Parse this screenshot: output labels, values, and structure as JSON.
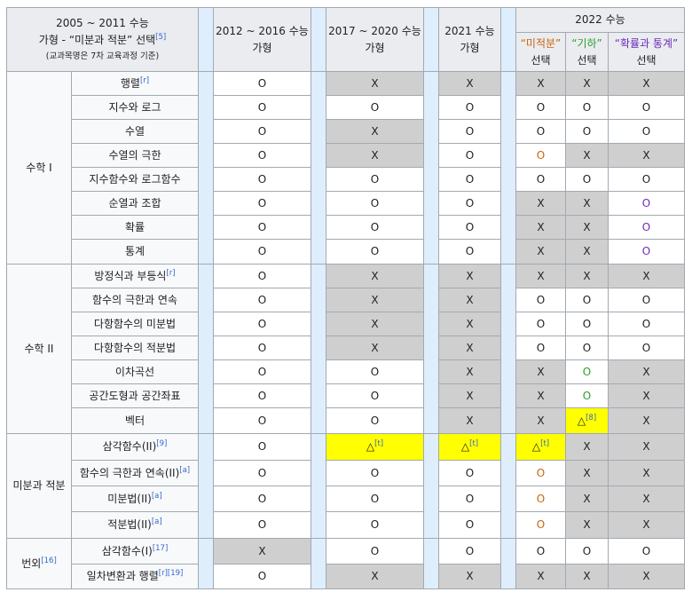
{
  "header": {
    "col1_line1": "2005 ~ 2011 수능",
    "col1_line2": "가형 - “미분과 적분” 선택",
    "col1_line2_ref": "[5]",
    "col1_line3": "(교과목명은 7차 교육과정 기준)",
    "col2_line1": "2012 ~ 2016 수능",
    "col2_line2": "가형",
    "col3_line1": "2017 ~ 2020 수능",
    "col3_line2": "가형",
    "col4_line1": "2021 수능",
    "col4_line2": "가형",
    "col5": "2022 수능",
    "sub1_line1": "“미적분”",
    "sub1_line2": "선택",
    "sub2_line1": "“기하”",
    "sub2_line2": "선택",
    "sub3_line1": "“확률과 통계”",
    "sub3_line2": "선택"
  },
  "colors": {
    "gray_cell": "#cfcfcf",
    "yellow_cell": "#ffff00",
    "gap_column": "#dfeefc",
    "header_bg": "#eaecf0",
    "orange_mark": "#c8640a",
    "green_mark": "#2e9d2e",
    "purple_mark": "#6c2cb8"
  },
  "groups": [
    {
      "name": "수학 I",
      "ref": ""
    },
    {
      "name": "수학 II",
      "ref": ""
    },
    {
      "name": "미분과 적분",
      "ref": ""
    },
    {
      "name": "번외",
      "ref": "[16]"
    }
  ],
  "rows": [
    {
      "topic": "행렬",
      "ref": "[r]",
      "cells": [
        [
          "O",
          "w",
          ""
        ],
        [
          "X",
          "g",
          ""
        ],
        [
          "X",
          "g",
          ""
        ],
        [
          "X",
          "g",
          ""
        ],
        [
          "X",
          "g",
          ""
        ],
        [
          "X",
          "g",
          ""
        ]
      ]
    },
    {
      "topic": "지수와 로그",
      "ref": "",
      "cells": [
        [
          "O",
          "w",
          ""
        ],
        [
          "O",
          "w",
          ""
        ],
        [
          "O",
          "w",
          ""
        ],
        [
          "O",
          "w",
          ""
        ],
        [
          "O",
          "w",
          ""
        ],
        [
          "O",
          "w",
          ""
        ]
      ]
    },
    {
      "topic": "수열",
      "ref": "",
      "cells": [
        [
          "O",
          "w",
          ""
        ],
        [
          "X",
          "g",
          ""
        ],
        [
          "O",
          "w",
          ""
        ],
        [
          "O",
          "w",
          ""
        ],
        [
          "O",
          "w",
          ""
        ],
        [
          "O",
          "w",
          ""
        ]
      ]
    },
    {
      "topic": "수열의 극한",
      "ref": "",
      "cells": [
        [
          "O",
          "w",
          ""
        ],
        [
          "X",
          "g",
          ""
        ],
        [
          "O",
          "w",
          ""
        ],
        [
          "O",
          "w",
          "orange"
        ],
        [
          "X",
          "g",
          ""
        ],
        [
          "X",
          "g",
          ""
        ]
      ]
    },
    {
      "topic": "지수함수와 로그함수",
      "ref": "",
      "cells": [
        [
          "O",
          "w",
          ""
        ],
        [
          "O",
          "w",
          ""
        ],
        [
          "O",
          "w",
          ""
        ],
        [
          "O",
          "w",
          ""
        ],
        [
          "O",
          "w",
          ""
        ],
        [
          "O",
          "w",
          ""
        ]
      ]
    },
    {
      "topic": "순열과 조합",
      "ref": "",
      "cells": [
        [
          "O",
          "w",
          ""
        ],
        [
          "O",
          "w",
          ""
        ],
        [
          "O",
          "w",
          ""
        ],
        [
          "X",
          "g",
          ""
        ],
        [
          "X",
          "g",
          ""
        ],
        [
          "O",
          "w",
          "purple"
        ]
      ]
    },
    {
      "topic": "확률",
      "ref": "",
      "cells": [
        [
          "O",
          "w",
          ""
        ],
        [
          "O",
          "w",
          ""
        ],
        [
          "O",
          "w",
          ""
        ],
        [
          "X",
          "g",
          ""
        ],
        [
          "X",
          "g",
          ""
        ],
        [
          "O",
          "w",
          "purple"
        ]
      ]
    },
    {
      "topic": "통계",
      "ref": "",
      "cells": [
        [
          "O",
          "w",
          ""
        ],
        [
          "O",
          "w",
          ""
        ],
        [
          "O",
          "w",
          ""
        ],
        [
          "X",
          "g",
          ""
        ],
        [
          "X",
          "g",
          ""
        ],
        [
          "O",
          "w",
          "purple"
        ]
      ]
    },
    {
      "topic": "방정식과 부등식",
      "ref": "[r]",
      "cells": [
        [
          "O",
          "w",
          ""
        ],
        [
          "X",
          "g",
          ""
        ],
        [
          "X",
          "g",
          ""
        ],
        [
          "X",
          "g",
          ""
        ],
        [
          "X",
          "g",
          ""
        ],
        [
          "X",
          "g",
          ""
        ]
      ]
    },
    {
      "topic": "함수의 극한과 연속",
      "ref": "",
      "cells": [
        [
          "O",
          "w",
          ""
        ],
        [
          "X",
          "g",
          ""
        ],
        [
          "X",
          "g",
          ""
        ],
        [
          "O",
          "w",
          ""
        ],
        [
          "O",
          "w",
          ""
        ],
        [
          "O",
          "w",
          ""
        ]
      ]
    },
    {
      "topic": "다항함수의 미분법",
      "ref": "",
      "cells": [
        [
          "O",
          "w",
          ""
        ],
        [
          "X",
          "g",
          ""
        ],
        [
          "X",
          "g",
          ""
        ],
        [
          "O",
          "w",
          ""
        ],
        [
          "O",
          "w",
          ""
        ],
        [
          "O",
          "w",
          ""
        ]
      ]
    },
    {
      "topic": "다항함수의 적분법",
      "ref": "",
      "cells": [
        [
          "O",
          "w",
          ""
        ],
        [
          "X",
          "g",
          ""
        ],
        [
          "X",
          "g",
          ""
        ],
        [
          "O",
          "w",
          ""
        ],
        [
          "O",
          "w",
          ""
        ],
        [
          "O",
          "w",
          ""
        ]
      ]
    },
    {
      "topic": "이차곡선",
      "ref": "",
      "cells": [
        [
          "O",
          "w",
          ""
        ],
        [
          "O",
          "w",
          ""
        ],
        [
          "X",
          "g",
          ""
        ],
        [
          "X",
          "g",
          ""
        ],
        [
          "O",
          "w",
          "green"
        ],
        [
          "X",
          "g",
          ""
        ]
      ]
    },
    {
      "topic": "공간도형과 공간좌표",
      "ref": "",
      "cells": [
        [
          "O",
          "w",
          ""
        ],
        [
          "O",
          "w",
          ""
        ],
        [
          "X",
          "g",
          ""
        ],
        [
          "X",
          "g",
          ""
        ],
        [
          "O",
          "w",
          "green"
        ],
        [
          "X",
          "g",
          ""
        ]
      ]
    },
    {
      "topic": "벡터",
      "ref": "",
      "cells": [
        [
          "O",
          "w",
          ""
        ],
        [
          "O",
          "w",
          ""
        ],
        [
          "X",
          "g",
          ""
        ],
        [
          "X",
          "g",
          ""
        ],
        [
          "△[8]",
          "y",
          ""
        ],
        [
          "X",
          "g",
          ""
        ]
      ]
    },
    {
      "topic": "삼각함수(II)",
      "ref": "[9]",
      "cells": [
        [
          "O",
          "w",
          ""
        ],
        [
          "△[t]",
          "y",
          ""
        ],
        [
          "△[t]",
          "y",
          ""
        ],
        [
          "△[t]",
          "y",
          ""
        ],
        [
          "X",
          "g",
          ""
        ],
        [
          "X",
          "g",
          ""
        ]
      ]
    },
    {
      "topic": "함수의 극한과 연속(II)",
      "ref": "[a]",
      "cells": [
        [
          "O",
          "w",
          ""
        ],
        [
          "O",
          "w",
          ""
        ],
        [
          "O",
          "w",
          ""
        ],
        [
          "O",
          "w",
          "orange"
        ],
        [
          "X",
          "g",
          ""
        ],
        [
          "X",
          "g",
          ""
        ]
      ]
    },
    {
      "topic": "미분법(II)",
      "ref": "[a]",
      "cells": [
        [
          "O",
          "w",
          ""
        ],
        [
          "O",
          "w",
          ""
        ],
        [
          "O",
          "w",
          ""
        ],
        [
          "O",
          "w",
          "orange"
        ],
        [
          "X",
          "g",
          ""
        ],
        [
          "X",
          "g",
          ""
        ]
      ]
    },
    {
      "topic": "적분법(II)",
      "ref": "[a]",
      "cells": [
        [
          "O",
          "w",
          ""
        ],
        [
          "O",
          "w",
          ""
        ],
        [
          "O",
          "w",
          ""
        ],
        [
          "O",
          "w",
          "orange"
        ],
        [
          "X",
          "g",
          ""
        ],
        [
          "X",
          "g",
          ""
        ]
      ]
    },
    {
      "topic": "삼각함수(I)",
      "ref": "[17]",
      "cells": [
        [
          "X",
          "g",
          ""
        ],
        [
          "O",
          "w",
          ""
        ],
        [
          "O",
          "w",
          ""
        ],
        [
          "O",
          "w",
          ""
        ],
        [
          "O",
          "w",
          ""
        ],
        [
          "O",
          "w",
          ""
        ]
      ]
    },
    {
      "topic": "일차변환과 행렬",
      "ref": "[r][19]",
      "cells": [
        [
          "O",
          "w",
          ""
        ],
        [
          "X",
          "g",
          ""
        ],
        [
          "X",
          "g",
          ""
        ],
        [
          "X",
          "g",
          ""
        ],
        [
          "X",
          "g",
          ""
        ],
        [
          "X",
          "g",
          ""
        ]
      ]
    }
  ]
}
